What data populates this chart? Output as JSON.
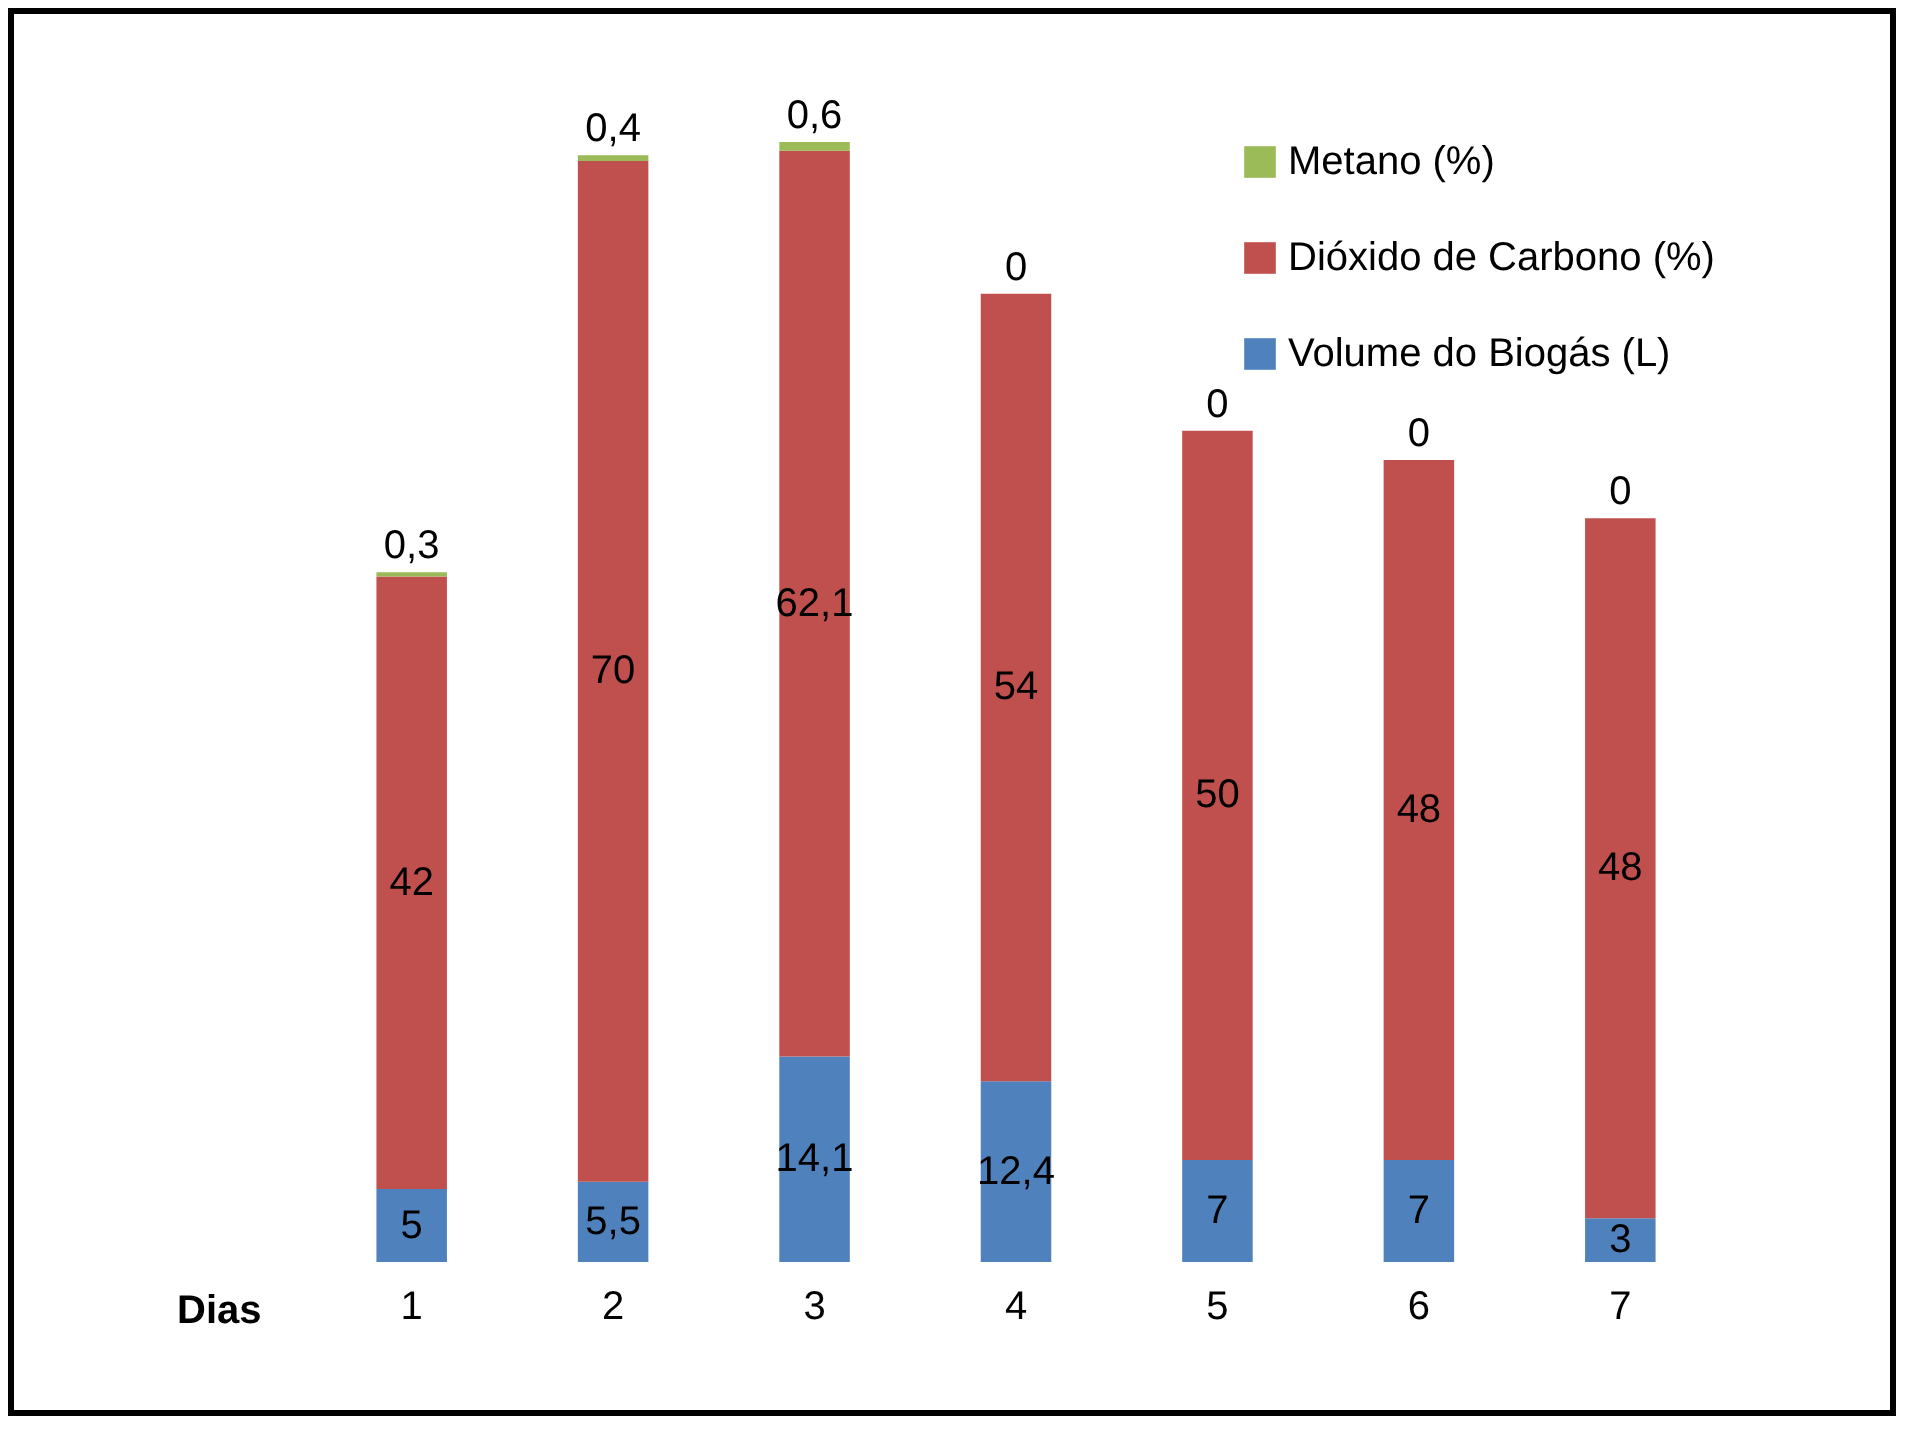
{
  "chart_data": {
    "type": "bar",
    "stacked": true,
    "xlabel": "Dias",
    "categories": [
      "1",
      "2",
      "3",
      "4",
      "5",
      "6",
      "7"
    ],
    "series": [
      {
        "name": "Volume do Biogás (L)",
        "color": "#4f81bd",
        "values": [
          5,
          5.5,
          14.1,
          12.4,
          7,
          7,
          3
        ],
        "value_labels": [
          "5",
          "5,5",
          "14,1",
          "12,4",
          "7",
          "7",
          "3"
        ]
      },
      {
        "name": "Dióxido de Carbono (%)",
        "color": "#c0504d",
        "values": [
          42,
          70,
          62.1,
          54,
          50,
          48,
          48
        ],
        "value_labels": [
          "42",
          "70",
          "62,1",
          "54",
          "50",
          "48",
          "48"
        ]
      },
      {
        "name": "Metano (%)",
        "color": "#9bbb59",
        "values": [
          0.3,
          0.4,
          0.6,
          0,
          0,
          0,
          0
        ],
        "value_labels": [
          "0,3",
          "0,4",
          "0,6",
          "0",
          "0",
          "0",
          "0"
        ]
      }
    ],
    "legend": "top right",
    "grid": false
  }
}
